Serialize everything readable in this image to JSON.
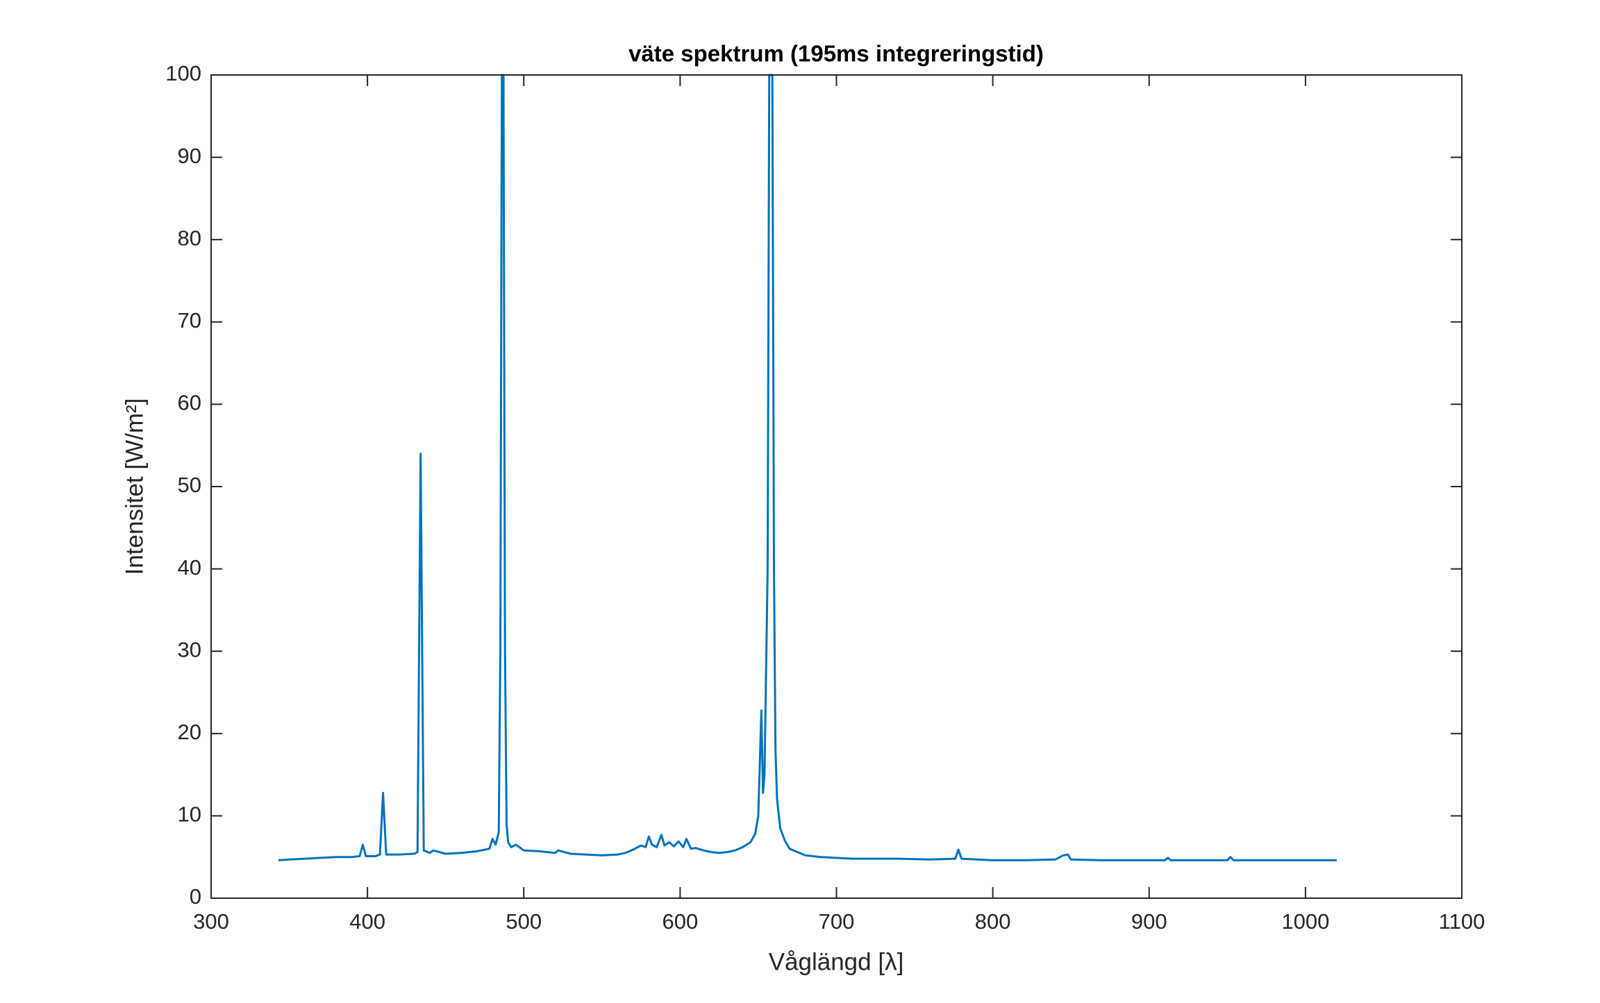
{
  "chart_data": {
    "type": "line",
    "title": "väte spektrum (195ms integreringstid)",
    "x_label": "Våglängd [λ]",
    "y_label": "Intensitet [W/m²]",
    "x": [
      343,
      350,
      360,
      370,
      380,
      390,
      395,
      397,
      399,
      405,
      408,
      410,
      412,
      420,
      430,
      432,
      434,
      436,
      440,
      442,
      450,
      460,
      470,
      478,
      480,
      482,
      484,
      485,
      486,
      487,
      488,
      489,
      490,
      492,
      495,
      500,
      510,
      520,
      522,
      530,
      540,
      550,
      560,
      565,
      570,
      575,
      578,
      580,
      582,
      585,
      588,
      590,
      593,
      596,
      599,
      602,
      604,
      607,
      610,
      615,
      620,
      625,
      630,
      635,
      640,
      645,
      648,
      650,
      652,
      653,
      654,
      656,
      657,
      659,
      660,
      661,
      662,
      664,
      667,
      670,
      680,
      690,
      700,
      710,
      720,
      740,
      760,
      776,
      778,
      780,
      790,
      800,
      820,
      840,
      845,
      848,
      850,
      870,
      890,
      910,
      912,
      914,
      930,
      950,
      952,
      954,
      970,
      990,
      1010,
      1020
    ],
    "series": [
      {
        "color": "#0072bd",
        "values": [
          4.6,
          4.7,
          4.8,
          4.9,
          5.0,
          5.0,
          5.1,
          6.5,
          5.1,
          5.1,
          5.3,
          12.8,
          5.3,
          5.3,
          5.4,
          5.6,
          54,
          5.8,
          5.5,
          5.8,
          5.4,
          5.5,
          5.7,
          6.0,
          7.2,
          6.5,
          8,
          30,
          100,
          100,
          30,
          9,
          6.8,
          6.2,
          6.5,
          5.8,
          5.7,
          5.5,
          5.8,
          5.4,
          5.3,
          5.2,
          5.3,
          5.5,
          5.9,
          6.4,
          6.2,
          7.5,
          6.5,
          6.2,
          7.7,
          6.4,
          6.8,
          6.3,
          6.9,
          6.2,
          7.2,
          6.0,
          6.1,
          5.8,
          5.6,
          5.5,
          5.6,
          5.8,
          6.2,
          6.8,
          7.8,
          10,
          22.8,
          12.8,
          15,
          40,
          100,
          100,
          40,
          18,
          12,
          8.5,
          7,
          6,
          5.2,
          5.0,
          4.9,
          4.8,
          4.8,
          4.8,
          4.7,
          4.8,
          5.9,
          4.8,
          4.7,
          4.6,
          4.6,
          4.7,
          5.2,
          5.3,
          4.7,
          4.6,
          4.6,
          4.6,
          4.9,
          4.6,
          4.6,
          4.6,
          5.0,
          4.6,
          4.6,
          4.6,
          4.6,
          4.6
        ]
      }
    ],
    "xlim": [
      300,
      1100
    ],
    "xticks": [
      300,
      400,
      500,
      600,
      700,
      800,
      900,
      1000,
      1100
    ],
    "ylim": [
      0,
      100
    ],
    "yticks": [
      0,
      10,
      20,
      30,
      40,
      50,
      60,
      70,
      80,
      90,
      100
    ],
    "grid": false
  }
}
